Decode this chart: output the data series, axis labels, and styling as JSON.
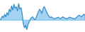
{
  "values": [
    0.3,
    0.8,
    2.5,
    1.5,
    3.5,
    2.0,
    4.5,
    3.0,
    6.5,
    5.0,
    8.5,
    6.0,
    9.5,
    7.0,
    8.0,
    5.5,
    9.8,
    6.5,
    7.5,
    4.0,
    -2.0,
    -4.5,
    -3.0,
    -5.5,
    -2.5,
    -1.0,
    0.5,
    1.5,
    2.0,
    1.0,
    0.2,
    1.5,
    3.5,
    5.0,
    6.5,
    5.5,
    4.0,
    7.0,
    8.0,
    6.5,
    5.0,
    3.5,
    2.5,
    1.5,
    2.0,
    1.5,
    1.0,
    0.8,
    1.2,
    1.5,
    1.8,
    1.2,
    0.8,
    1.5,
    2.0,
    1.5,
    1.2,
    0.8,
    1.0,
    1.5,
    1.8,
    1.5,
    1.2,
    1.0,
    0.8,
    1.2,
    1.8,
    2.5,
    3.0,
    2.5,
    2.0,
    2.8,
    3.5,
    3.0
  ],
  "line_color": "#2b8cc4",
  "fill_color": "#5aade8",
  "fill_alpha": 0.55,
  "background_color": "#ffffff",
  "ylim_min": -7.0,
  "ylim_max": 12.0
}
